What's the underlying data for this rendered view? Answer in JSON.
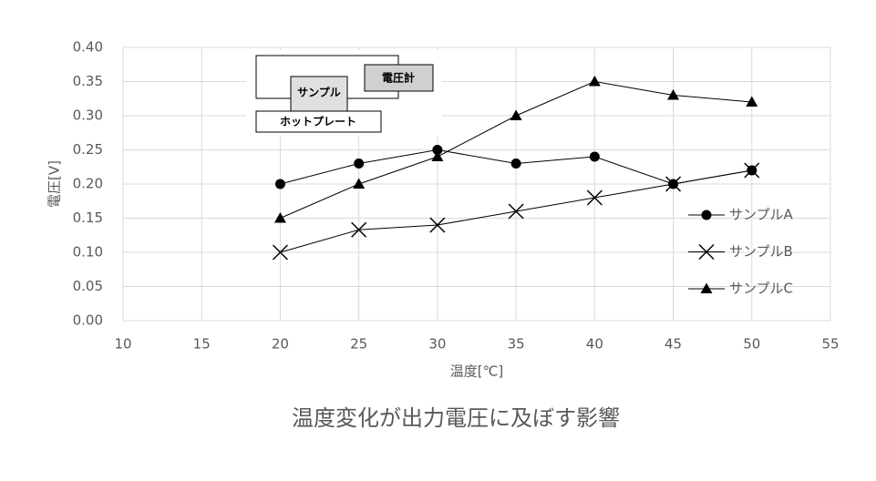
{
  "chart_data": {
    "type": "line",
    "title": "温度変化が出力電圧に及ぼす影響",
    "x_label": "温度[℃]",
    "y_label": "電圧[V]",
    "x": [
      20,
      25,
      30,
      35,
      40,
      45,
      50
    ],
    "series": [
      {
        "name": "サンプルA",
        "color": "#000000",
        "marker": "circle",
        "values": [
          0.2,
          0.23,
          0.25,
          0.23,
          0.24,
          0.2,
          0.22
        ]
      },
      {
        "name": "サンプルB",
        "color": "#000000",
        "marker": "x",
        "values": [
          0.1,
          0.133,
          0.14,
          0.16,
          0.18,
          0.2,
          0.22
        ]
      },
      {
        "name": "サンプルC",
        "color": "#000000",
        "marker": "triangle",
        "values": [
          0.15,
          0.2,
          0.24,
          0.3,
          0.35,
          0.33,
          0.32
        ]
      }
    ],
    "xlim": [
      10,
      55
    ],
    "xticks": [
      10,
      15,
      20,
      25,
      30,
      35,
      40,
      45,
      50,
      55
    ],
    "ylim": [
      0,
      0.4
    ],
    "yticks": [
      {
        "value": 0,
        "label": "0.00"
      },
      0.05,
      {
        "value": 0.1,
        "label": "0.10"
      },
      0.15,
      {
        "value": 0.2,
        "label": "0.20"
      },
      0.25,
      {
        "value": 0.3,
        "label": "0.30"
      },
      0.35,
      {
        "value": 0.4,
        "label": "0.40"
      }
    ],
    "grid": true,
    "legend": "right",
    "inset": [
      "サンプル",
      "電圧計",
      "ホットプレート"
    ]
  }
}
